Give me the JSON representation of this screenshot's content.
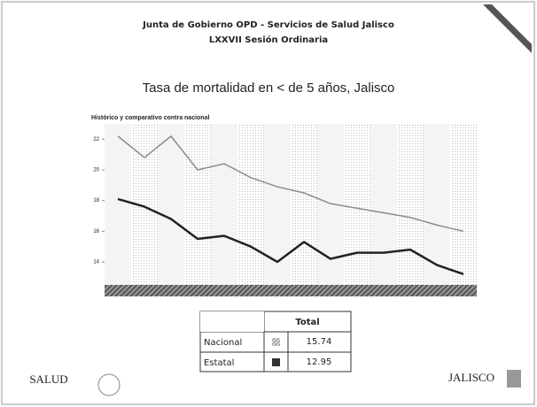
{
  "header": {
    "title": "Junta de Gobierno OPD - Servicios de Salud Jalisco",
    "subtitle": "LXXVII Sesión Ordinaria"
  },
  "chart_data": {
    "type": "line",
    "title": "Tasa de mortalidad en < de 5 años, Jalisco",
    "subtitle": "Histórico y comparativo contra nacional",
    "categories": [
      null,
      null,
      null,
      null,
      null,
      null,
      null,
      null,
      null,
      null,
      null,
      null,
      null,
      null
    ],
    "series": [
      {
        "name": "Nacional",
        "color": "#8c8c8c",
        "values": [
          22.2,
          20.8,
          22.2,
          20.0,
          20.4,
          19.5,
          18.9,
          18.5,
          17.8,
          17.5,
          17.2,
          16.9,
          16.4,
          16.0
        ]
      },
      {
        "name": "Estatal",
        "color": "#222222",
        "values": [
          18.1,
          17.6,
          16.8,
          15.5,
          15.7,
          15.0,
          14.0,
          15.3,
          14.2,
          14.6,
          14.6,
          14.8,
          13.8,
          13.2
        ]
      }
    ],
    "ylim": [
      12.5,
      23
    ],
    "yticks": [
      14,
      16,
      18,
      20,
      22
    ],
    "grid": false
  },
  "table": {
    "header": "Total",
    "rows": [
      [
        "Nacional",
        "15.74"
      ],
      [
        "Estatal",
        "12.95"
      ]
    ]
  },
  "footer": {
    "left": "SALUD",
    "right": "JALISCO"
  }
}
